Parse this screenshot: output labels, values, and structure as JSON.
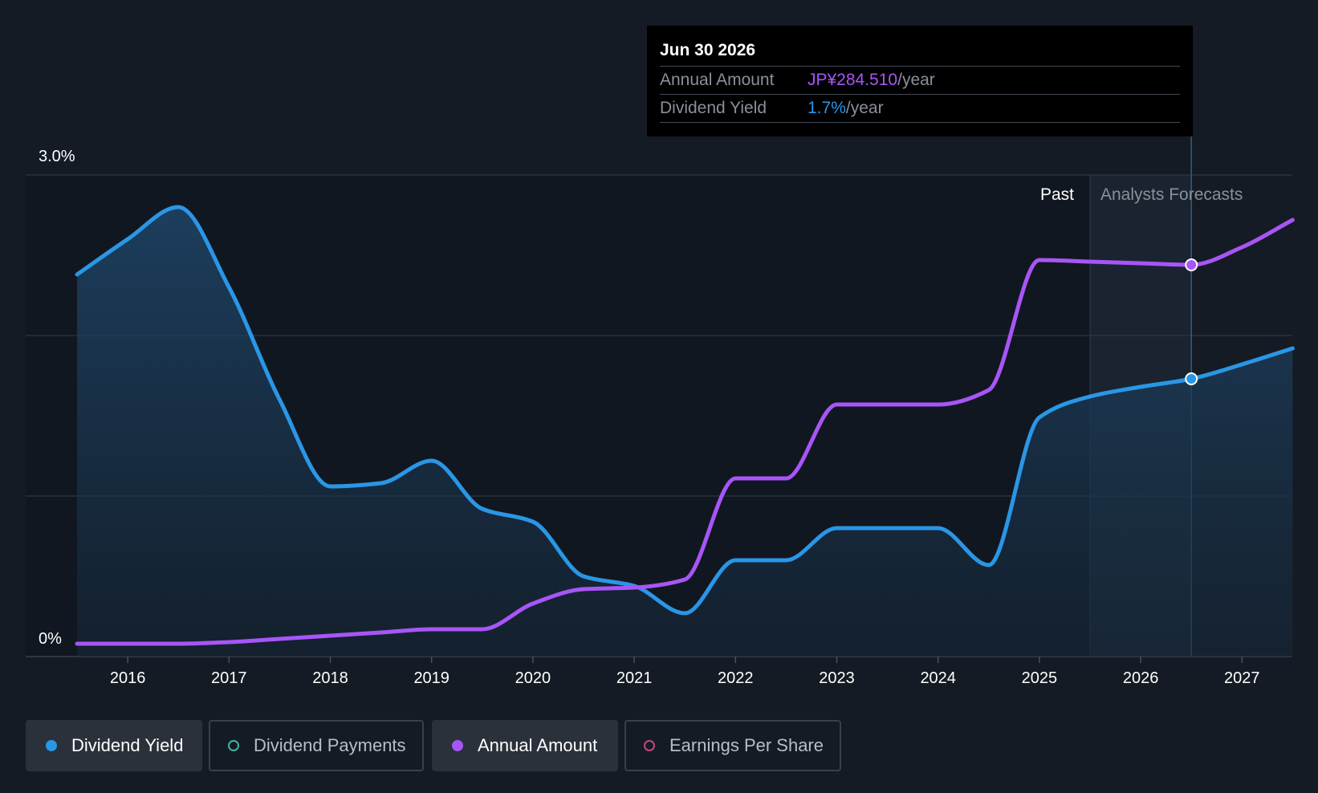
{
  "tooltip": {
    "date": "Jun 30 2026",
    "rows": [
      {
        "label": "Annual Amount",
        "value": "JP¥284.510",
        "unit": "/year",
        "color": "#a855f7"
      },
      {
        "label": "Dividend Yield",
        "value": "1.7%",
        "unit": "/year",
        "color": "#2a96e6"
      }
    ]
  },
  "legend": [
    {
      "label": "Dividend Yield",
      "active": true,
      "dot_color": "#2a96e6",
      "filled": true
    },
    {
      "label": "Dividend Payments",
      "active": false,
      "dot_color": "#3fb5a6",
      "filled": false
    },
    {
      "label": "Annual Amount",
      "active": true,
      "dot_color": "#a855f7",
      "filled": true
    },
    {
      "label": "Earnings Per Share",
      "active": false,
      "dot_color": "#c2477a",
      "filled": false
    }
  ],
  "chart_data": {
    "type": "line",
    "x_ticks": [
      "2016",
      "2017",
      "2018",
      "2019",
      "2020",
      "2021",
      "2022",
      "2023",
      "2024",
      "2025",
      "2026",
      "2027"
    ],
    "y_ticks": [
      "0%",
      "3.0%"
    ],
    "ylim": [
      0,
      3.0
    ],
    "xlim": [
      2015.5,
      2027.5
    ],
    "grid": true,
    "region_labels": {
      "past": "Past",
      "forecast": "Analysts Forecasts"
    },
    "past_end": 2025.5,
    "highlight_x": 2026.5,
    "series": [
      {
        "name": "Dividend Yield",
        "color": "#2a96e6",
        "area": true,
        "unit": "%",
        "points": [
          [
            2015.5,
            2.38
          ],
          [
            2016.0,
            2.6
          ],
          [
            2016.5,
            2.8
          ],
          [
            2017.0,
            2.3
          ],
          [
            2017.5,
            1.6
          ],
          [
            2018.0,
            1.06
          ],
          [
            2018.5,
            1.08
          ],
          [
            2019.0,
            1.22
          ],
          [
            2019.5,
            0.92
          ],
          [
            2020.0,
            0.84
          ],
          [
            2020.5,
            0.5
          ],
          [
            2021.0,
            0.44
          ],
          [
            2021.5,
            0.27
          ],
          [
            2022.0,
            0.6
          ],
          [
            2022.5,
            0.6
          ],
          [
            2023.0,
            0.8
          ],
          [
            2023.5,
            0.8
          ],
          [
            2024.0,
            0.8
          ],
          [
            2024.5,
            0.57
          ],
          [
            2025.0,
            1.49
          ],
          [
            2025.5,
            1.62
          ],
          [
            2026.0,
            1.68
          ],
          [
            2026.5,
            1.73
          ],
          [
            2027.0,
            1.82
          ],
          [
            2027.5,
            1.92
          ]
        ]
      },
      {
        "name": "Annual Amount",
        "color": "#a855f7",
        "area": false,
        "unit": "share of y-range",
        "points": [
          [
            2015.5,
            0.08
          ],
          [
            2016.0,
            0.08
          ],
          [
            2016.5,
            0.08
          ],
          [
            2017.0,
            0.09
          ],
          [
            2017.5,
            0.11
          ],
          [
            2018.0,
            0.13
          ],
          [
            2018.5,
            0.15
          ],
          [
            2019.0,
            0.17
          ],
          [
            2019.5,
            0.17
          ],
          [
            2020.0,
            0.33
          ],
          [
            2020.5,
            0.42
          ],
          [
            2021.0,
            0.43
          ],
          [
            2021.5,
            0.48
          ],
          [
            2022.0,
            1.11
          ],
          [
            2022.5,
            1.11
          ],
          [
            2023.0,
            1.57
          ],
          [
            2023.5,
            1.57
          ],
          [
            2024.0,
            1.57
          ],
          [
            2024.5,
            1.66
          ],
          [
            2025.0,
            2.47
          ],
          [
            2025.5,
            2.46
          ],
          [
            2026.0,
            2.45
          ],
          [
            2026.5,
            2.44
          ],
          [
            2027.0,
            2.55
          ],
          [
            2027.5,
            2.72
          ]
        ]
      }
    ]
  }
}
